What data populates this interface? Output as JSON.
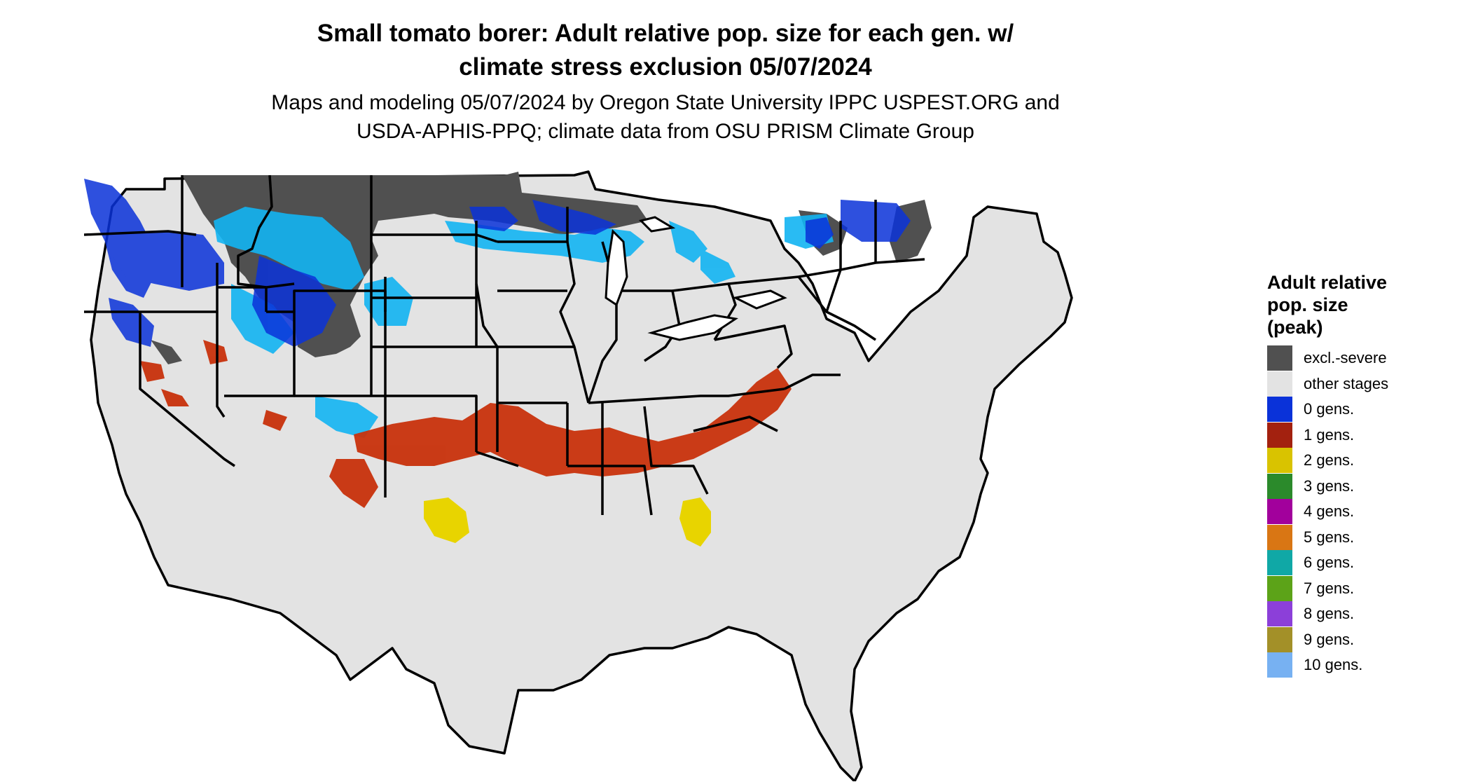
{
  "title_line1": "Small tomato borer: Adult relative pop. size for each gen. w/",
  "title_line2": "climate stress exclusion 05/07/2024",
  "subtitle_line1": "Maps and modeling 05/07/2024 by Oregon State University IPPC USPEST.ORG and",
  "subtitle_line2": "USDA-APHIS-PPQ; climate data from OSU PRISM Climate Group",
  "legend": {
    "title_lines": [
      "Adult relative",
      "pop. size",
      "(peak)"
    ],
    "items": [
      {
        "label": "excl.-severe",
        "color": "#505050"
      },
      {
        "label": "other stages",
        "color": "#e3e3e3"
      },
      {
        "label": "0 gens.",
        "color": "#0a32d9"
      },
      {
        "label": "1 gens.",
        "color": "#a3210f"
      },
      {
        "label": "2 gens.",
        "color": "#d9c300"
      },
      {
        "label": "3 gens.",
        "color": "#2b8a2b"
      },
      {
        "label": "4 gens.",
        "color": "#a2009c"
      },
      {
        "label": "5 gens.",
        "color": "#d97614"
      },
      {
        "label": "6 gens.",
        "color": "#10a8a6"
      },
      {
        "label": "7 gens.",
        "color": "#5ca318"
      },
      {
        "label": "8 gens.",
        "color": "#8c3fd9"
      },
      {
        "label": "9 gens.",
        "color": "#a39028"
      },
      {
        "label": "10 gens.",
        "color": "#77b1f2"
      }
    ]
  },
  "map_colors": {
    "base": "#e3e3e3",
    "exclusion": "#505050",
    "light_blue": "#12b4f2",
    "blue": "#0a32d9",
    "red": "#c8320c",
    "yellow": "#e8d400",
    "border": "#000000"
  }
}
